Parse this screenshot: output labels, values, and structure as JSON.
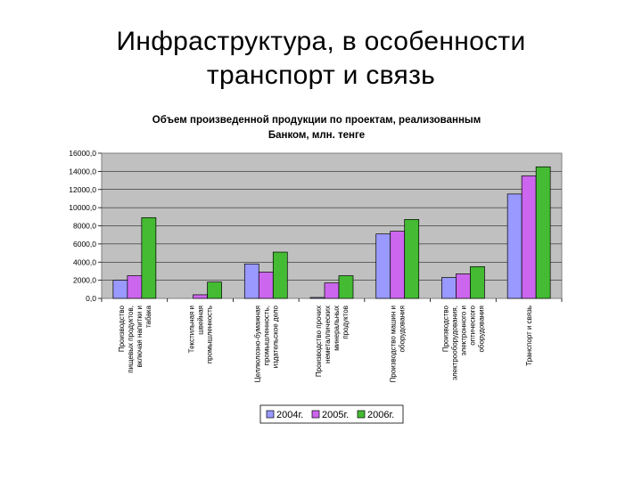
{
  "slide": {
    "title_line1": "Инфраструктура, в особенности",
    "title_line2": "транспорт и связь"
  },
  "chart_data": {
    "type": "bar",
    "title_line1": "Объем произведенной продукции по проектам, реализованным",
    "title_line2": "Банком, млн. тенге",
    "xlabel": "",
    "ylabel": "",
    "ylim": [
      0,
      16000
    ],
    "yticks": [
      "0,0",
      "2000,0",
      "4000,0",
      "6000,0",
      "8000,0",
      "10000,0",
      "12000,0",
      "14000,0",
      "16000,0"
    ],
    "grid": true,
    "legend_position": "bottom",
    "categories": [
      [
        "Производство",
        "пищевых продуктов,",
        "включая напитки и",
        "табака"
      ],
      [
        "Текстильная и",
        "швейная",
        "промышленность"
      ],
      [
        "Целлюлозно-бумажная",
        "промышленность,",
        "издательское дело"
      ],
      [
        "Производство прочих",
        "неметаллических",
        "минеральных",
        "продуктов"
      ],
      [
        "Производство машин и",
        "оборудования"
      ],
      [
        "Производство",
        "электрооборудования,",
        "электронного и",
        "оптического",
        "оборудования"
      ],
      [
        "Транспорт и связь"
      ]
    ],
    "series": [
      {
        "name": "2004г.",
        "color": "#9999ff",
        "values": [
          2000,
          0,
          3800,
          100,
          7100,
          2300,
          11500
        ]
      },
      {
        "name": "2005г.",
        "color": "#cc66ee",
        "values": [
          2500,
          400,
          2900,
          1700,
          7400,
          2700,
          13500
        ]
      },
      {
        "name": "2006г.",
        "color": "#44bb33",
        "values": [
          8900,
          1800,
          5100,
          2500,
          8700,
          3500,
          14500
        ]
      }
    ]
  }
}
